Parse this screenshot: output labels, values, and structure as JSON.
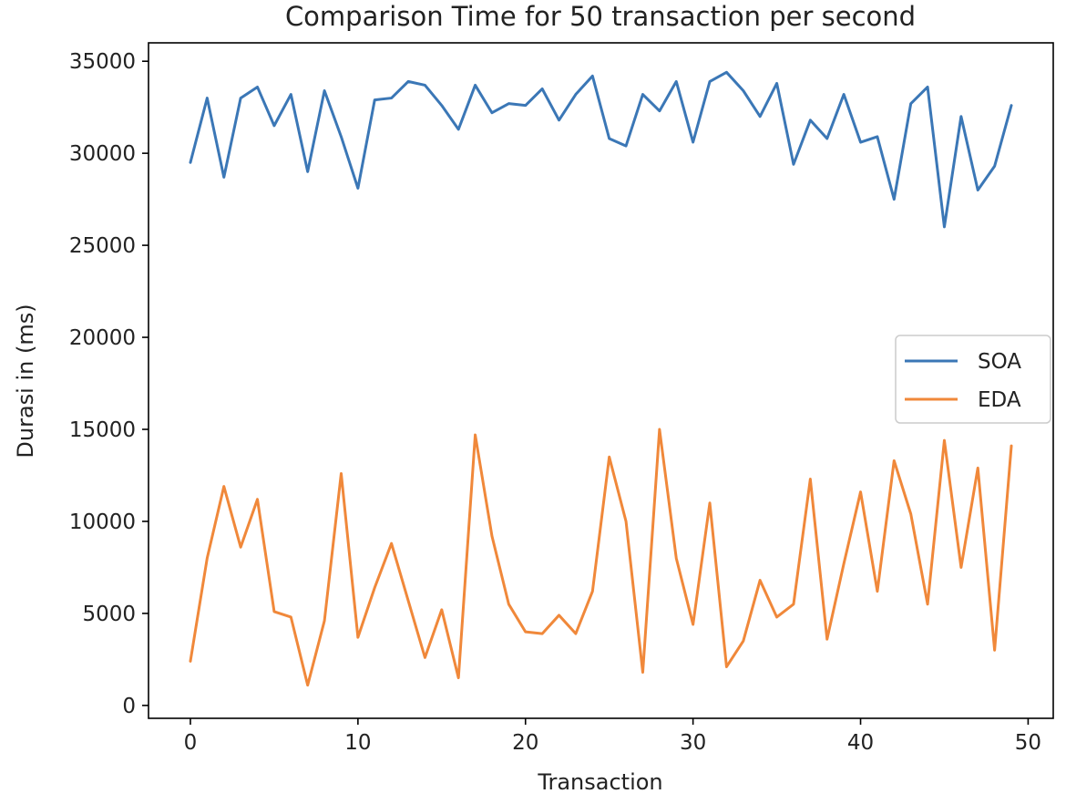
{
  "chart_data": {
    "type": "line",
    "title": "Comparison Time for 50 transaction per second",
    "xlabel": "Transaction",
    "ylabel": "Durasi in (ms)",
    "xlim": [
      -2.5,
      51.5
    ],
    "ylim": [
      -700,
      36000
    ],
    "xticks": [
      0,
      10,
      20,
      30,
      40,
      50
    ],
    "yticks": [
      0,
      5000,
      10000,
      15000,
      20000,
      25000,
      30000,
      35000
    ],
    "grid": false,
    "legend_position": "center-right",
    "x": [
      0,
      1,
      2,
      3,
      4,
      5,
      6,
      7,
      8,
      9,
      10,
      11,
      12,
      13,
      14,
      15,
      16,
      17,
      18,
      19,
      20,
      21,
      22,
      23,
      24,
      25,
      26,
      27,
      28,
      29,
      30,
      31,
      32,
      33,
      34,
      35,
      36,
      37,
      38,
      39,
      40,
      41,
      42,
      43,
      44,
      45,
      46,
      47,
      48,
      49
    ],
    "series": [
      {
        "name": "SOA",
        "color": "#3b77b6",
        "values": [
          29500,
          33000,
          28700,
          33000,
          33600,
          31500,
          33200,
          29000,
          33400,
          30900,
          28100,
          32900,
          33000,
          33900,
          33700,
          32600,
          31300,
          33700,
          32200,
          32700,
          32600,
          33500,
          31800,
          33200,
          34200,
          30800,
          30400,
          33200,
          32300,
          33900,
          30600,
          33900,
          34400,
          33400,
          32000,
          33800,
          29400,
          31800,
          30800,
          33200,
          30600,
          30900,
          27500,
          32700,
          33600,
          26000,
          32000,
          28000,
          29300,
          32600
        ]
      },
      {
        "name": "EDA",
        "color": "#f0883a",
        "values": [
          2400,
          8000,
          11900,
          8600,
          11200,
          5100,
          4800,
          1100,
          4600,
          12600,
          3700,
          6400,
          8800,
          5700,
          2600,
          5200,
          1500,
          14700,
          9200,
          5500,
          4000,
          3900,
          4900,
          3900,
          6200,
          13500,
          10000,
          1800,
          15000,
          8000,
          4400,
          11000,
          2100,
          3500,
          6800,
          4800,
          5500,
          12300,
          3600,
          7700,
          11600,
          6200,
          13300,
          10400,
          5500,
          14400,
          7500,
          12900,
          3000,
          14100
        ]
      }
    ]
  }
}
